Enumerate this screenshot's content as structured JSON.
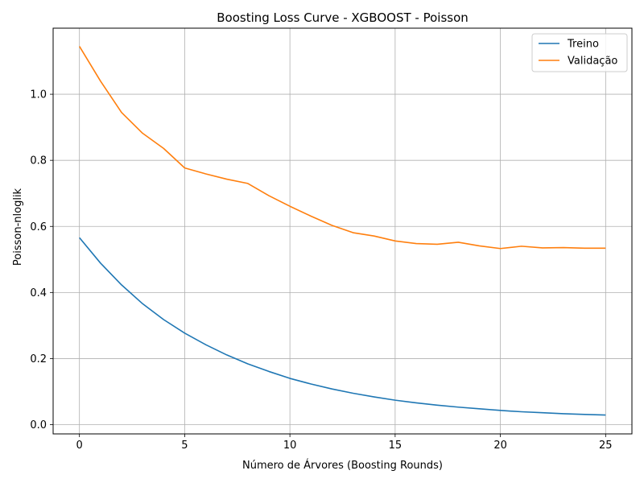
{
  "chart_data": {
    "type": "line",
    "title": "Boosting Loss Curve - XGBOOST - Poisson",
    "xlabel": "Número de Árvores (Boosting Rounds)",
    "ylabel": "Poisson-nloglik",
    "xlim": [
      -1.25,
      26.25
    ],
    "ylim": [
      -0.028,
      1.2
    ],
    "xticks": [
      0,
      5,
      10,
      15,
      20,
      25
    ],
    "xtick_labels": [
      "0",
      "5",
      "10",
      "15",
      "20",
      "25"
    ],
    "yticks": [
      0.0,
      0.2,
      0.4,
      0.6,
      0.8,
      1.0
    ],
    "ytick_labels": [
      "0.0",
      "0.2",
      "0.4",
      "0.6",
      "0.8",
      "1.0"
    ],
    "grid": true,
    "legend_position": "top-right",
    "x": [
      0,
      1,
      2,
      3,
      4,
      5,
      6,
      7,
      8,
      9,
      10,
      11,
      12,
      13,
      14,
      15,
      16,
      17,
      18,
      19,
      20,
      21,
      22,
      23,
      24,
      25
    ],
    "series": [
      {
        "name": "Treino",
        "color": "#1f77b4",
        "values": [
          0.566,
          0.489,
          0.423,
          0.366,
          0.318,
          0.277,
          0.242,
          0.211,
          0.184,
          0.161,
          0.14,
          0.123,
          0.108,
          0.095,
          0.084,
          0.074,
          0.066,
          0.059,
          0.053,
          0.048,
          0.043,
          0.039,
          0.036,
          0.033,
          0.031,
          0.029
        ]
      },
      {
        "name": "Validação",
        "color": "#ff7f0e",
        "values": [
          1.145,
          1.04,
          0.945,
          0.882,
          0.836,
          0.777,
          0.759,
          0.743,
          0.73,
          0.693,
          0.661,
          0.631,
          0.603,
          0.581,
          0.571,
          0.556,
          0.548,
          0.546,
          0.552,
          0.541,
          0.533,
          0.54,
          0.535,
          0.536,
          0.534,
          0.534
        ]
      }
    ]
  }
}
